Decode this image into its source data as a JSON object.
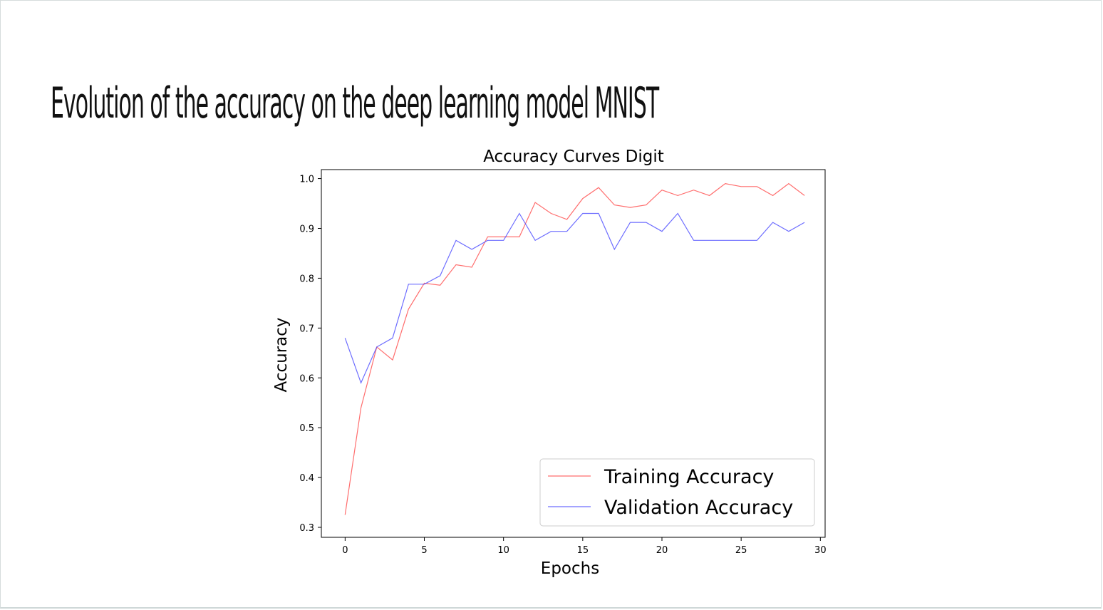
{
  "slide": {
    "title": "Evolution of the accuracy on the deep learning model MNIST"
  },
  "chart_data": {
    "type": "line",
    "title": "Accuracy Curves Digit",
    "xlabel": "Epochs",
    "ylabel": "Accuracy",
    "xlim": [
      -1.5,
      30.3
    ],
    "ylim": [
      0.28,
      1.018
    ],
    "xticks": [
      0,
      5,
      10,
      15,
      20,
      25,
      30
    ],
    "yticks": [
      0.3,
      0.4,
      0.5,
      0.6,
      0.7,
      0.8,
      0.9,
      1.0
    ],
    "xtick_labels": [
      "0",
      "5",
      "10",
      "15",
      "20",
      "25",
      "30"
    ],
    "ytick_labels": [
      "0.3",
      "0.4",
      "0.5",
      "0.6",
      "0.7",
      "0.8",
      "0.9",
      "1.0"
    ],
    "grid": false,
    "legend": "lower-right",
    "x": [
      0,
      1,
      2,
      3,
      4,
      5,
      6,
      7,
      8,
      9,
      10,
      11,
      12,
      13,
      14,
      15,
      16,
      17,
      18,
      19,
      20,
      21,
      22,
      23,
      24,
      25,
      26,
      27,
      28,
      29
    ],
    "series": [
      {
        "name": "Training Accuracy",
        "color": "#ff5555",
        "values": [
          0.325,
          0.54,
          0.662,
          0.636,
          0.738,
          0.79,
          0.786,
          0.827,
          0.822,
          0.883,
          0.883,
          0.883,
          0.952,
          0.93,
          0.918,
          0.96,
          0.982,
          0.947,
          0.942,
          0.947,
          0.977,
          0.966,
          0.977,
          0.966,
          0.99,
          0.984,
          0.984,
          0.966,
          0.99,
          0.966
        ]
      },
      {
        "name": "Validation Accuracy",
        "color": "#5555ff",
        "values": [
          0.68,
          0.59,
          0.662,
          0.68,
          0.788,
          0.788,
          0.805,
          0.876,
          0.858,
          0.876,
          0.876,
          0.93,
          0.876,
          0.894,
          0.894,
          0.93,
          0.93,
          0.858,
          0.912,
          0.912,
          0.894,
          0.93,
          0.876,
          0.876,
          0.876,
          0.876,
          0.876,
          0.912,
          0.894,
          0.912
        ]
      }
    ]
  }
}
